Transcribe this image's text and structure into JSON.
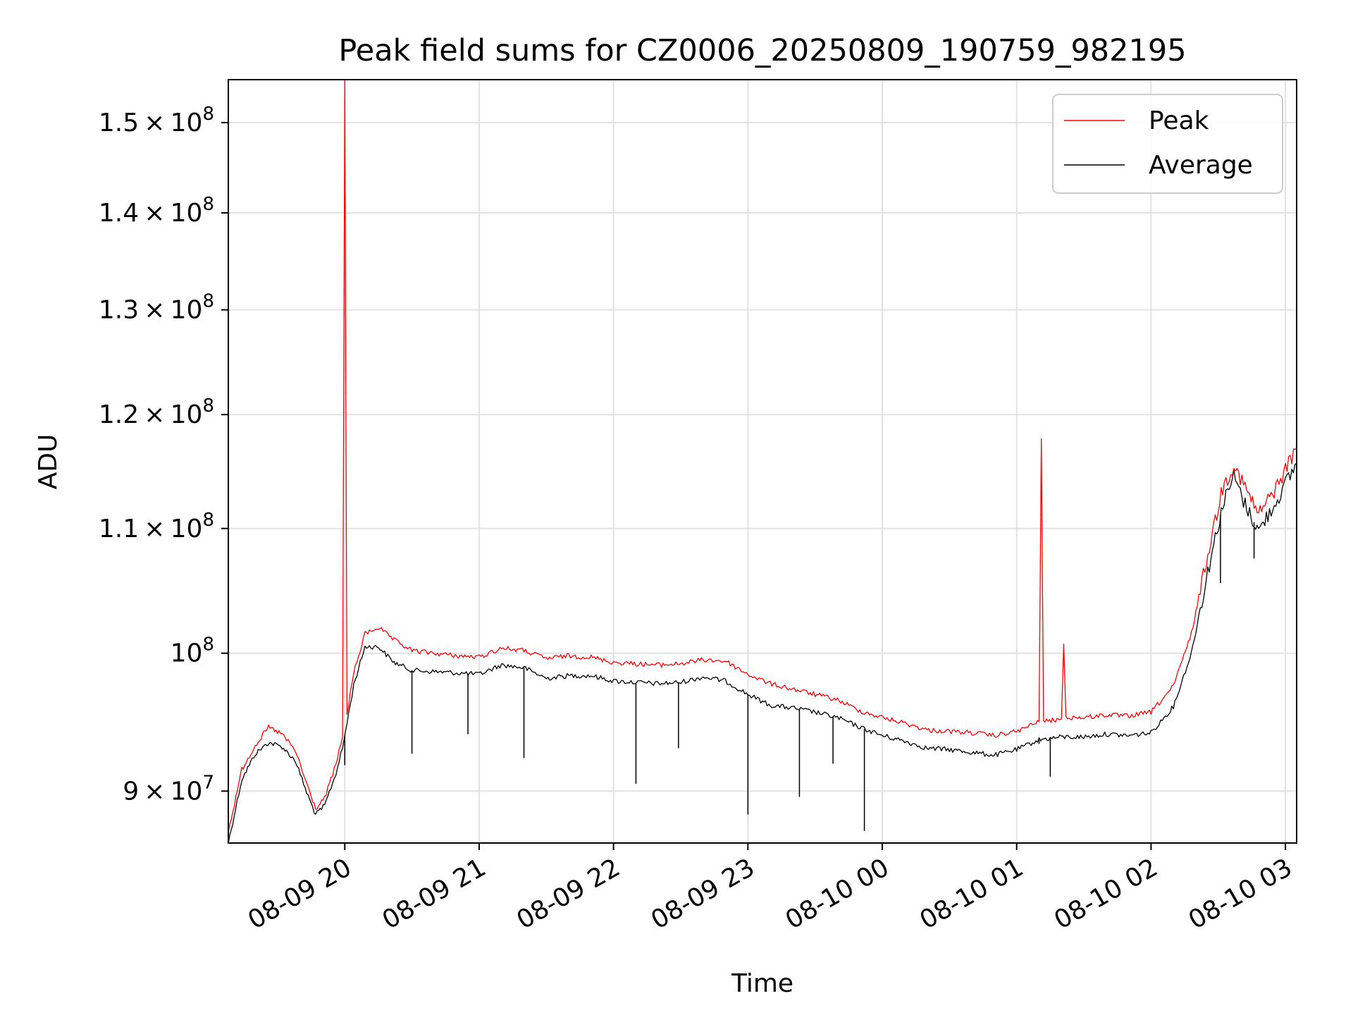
{
  "chart_data": {
    "type": "line",
    "title": "Peak field sums for CZ0006_20250809_190759_982195",
    "xlabel": "Time",
    "ylabel": "ADU",
    "y_scale": "log",
    "grid": true,
    "legend_position": "top-right",
    "xlim": [
      "2025-08-09 19:08",
      "2025-08-10 03:05"
    ],
    "ylim": [
      86500000,
      155000000
    ],
    "x_ticks": [
      {
        "value": "2025-08-09 20:00",
        "label": "08-09 20"
      },
      {
        "value": "2025-08-09 21:00",
        "label": "08-09 21"
      },
      {
        "value": "2025-08-09 22:00",
        "label": "08-09 22"
      },
      {
        "value": "2025-08-09 23:00",
        "label": "08-09 23"
      },
      {
        "value": "2025-08-10 00:00",
        "label": "08-10 00"
      },
      {
        "value": "2025-08-10 01:00",
        "label": "08-10 01"
      },
      {
        "value": "2025-08-10 02:00",
        "label": "08-10 02"
      },
      {
        "value": "2025-08-10 03:00",
        "label": "08-10 03"
      }
    ],
    "y_ticks": [
      {
        "value": 90000000,
        "mantissa": "9",
        "exp": "7"
      },
      {
        "value": 100000000,
        "mantissa": "",
        "exp": "8"
      },
      {
        "value": 110000000,
        "mantissa": "1.1",
        "exp": "8"
      },
      {
        "value": 120000000,
        "mantissa": "1.2",
        "exp": "8"
      },
      {
        "value": 130000000,
        "mantissa": "1.3",
        "exp": "8"
      },
      {
        "value": 140000000,
        "mantissa": "1.4",
        "exp": "8"
      },
      {
        "value": 150000000,
        "mantissa": "1.5",
        "exp": "8"
      }
    ],
    "series": [
      {
        "name": "Peak",
        "color": "#ff0000",
        "points": [
          [
            "2025-08-09 19:08",
            87200000
          ],
          [
            "2025-08-09 19:14",
            91500000
          ],
          [
            "2025-08-09 19:20",
            93200000
          ],
          [
            "2025-08-09 19:26",
            94500000
          ],
          [
            "2025-08-09 19:32",
            94000000
          ],
          [
            "2025-08-09 19:38",
            92800000
          ],
          [
            "2025-08-09 19:43",
            90500000
          ],
          [
            "2025-08-09 19:47",
            88800000
          ],
          [
            "2025-08-09 19:51",
            89500000
          ],
          [
            "2025-08-09 19:56",
            91800000
          ],
          [
            "2025-08-09 19:59",
            93800000
          ],
          [
            "2025-08-09 20:00",
            155000000
          ],
          [
            "2025-08-09 20:01",
            95500000
          ],
          [
            "2025-08-09 20:04",
            98500000
          ],
          [
            "2025-08-09 20:09",
            101500000
          ],
          [
            "2025-08-09 20:15",
            102000000
          ],
          [
            "2025-08-09 20:22",
            101000000
          ],
          [
            "2025-08-09 20:30",
            100200000
          ],
          [
            "2025-08-09 20:40",
            100000000
          ],
          [
            "2025-08-09 20:50",
            99800000
          ],
          [
            "2025-08-09 21:00",
            99700000
          ],
          [
            "2025-08-09 21:10",
            100400000
          ],
          [
            "2025-08-09 21:20",
            100200000
          ],
          [
            "2025-08-09 21:30",
            99600000
          ],
          [
            "2025-08-09 21:40",
            99800000
          ],
          [
            "2025-08-09 21:50",
            99700000
          ],
          [
            "2025-08-09 22:00",
            99300000
          ],
          [
            "2025-08-09 22:10",
            99200000
          ],
          [
            "2025-08-09 22:20",
            99100000
          ],
          [
            "2025-08-09 22:30",
            99200000
          ],
          [
            "2025-08-09 22:40",
            99500000
          ],
          [
            "2025-08-09 22:50",
            99400000
          ],
          [
            "2025-08-09 23:00",
            98400000
          ],
          [
            "2025-08-09 23:10",
            97700000
          ],
          [
            "2025-08-09 23:20",
            97300000
          ],
          [
            "2025-08-09 23:30",
            96900000
          ],
          [
            "2025-08-09 23:40",
            96500000
          ],
          [
            "2025-08-09 23:50",
            95700000
          ],
          [
            "2025-08-10 00:00",
            95200000
          ],
          [
            "2025-08-10 00:10",
            94800000
          ],
          [
            "2025-08-10 00:20",
            94300000
          ],
          [
            "2025-08-10 00:30",
            94200000
          ],
          [
            "2025-08-10 00:40",
            94100000
          ],
          [
            "2025-08-10 00:50",
            93900000
          ],
          [
            "2025-08-10 01:00",
            94200000
          ],
          [
            "2025-08-10 01:10",
            94900000
          ],
          [
            "2025-08-10 01:11",
            117800000
          ],
          [
            "2025-08-10 01:12",
            94900000
          ],
          [
            "2025-08-10 01:20",
            95100000
          ],
          [
            "2025-08-10 01:21",
            100700000
          ],
          [
            "2025-08-10 01:22",
            95200000
          ],
          [
            "2025-08-10 01:30",
            95200000
          ],
          [
            "2025-08-10 01:40",
            95400000
          ],
          [
            "2025-08-10 01:50",
            95300000
          ],
          [
            "2025-08-10 02:00",
            95600000
          ],
          [
            "2025-08-10 02:10",
            97500000
          ],
          [
            "2025-08-10 02:18",
            101500000
          ],
          [
            "2025-08-10 02:26",
            108500000
          ],
          [
            "2025-08-10 02:32",
            113500000
          ],
          [
            "2025-08-10 02:37",
            115500000
          ],
          [
            "2025-08-10 02:42",
            113500000
          ],
          [
            "2025-08-10 02:48",
            111200000
          ],
          [
            "2025-08-10 02:55",
            113200000
          ],
          [
            "2025-08-10 03:05",
            117000000
          ]
        ]
      },
      {
        "name": "Average",
        "color": "#000000",
        "points": [
          [
            "2025-08-09 19:08",
            86500000
          ],
          [
            "2025-08-09 19:14",
            90800000
          ],
          [
            "2025-08-09 19:20",
            92600000
          ],
          [
            "2025-08-09 19:26",
            93400000
          ],
          [
            "2025-08-09 19:32",
            93100000
          ],
          [
            "2025-08-09 19:38",
            92100000
          ],
          [
            "2025-08-09 19:43",
            89900000
          ],
          [
            "2025-08-09 19:47",
            88400000
          ],
          [
            "2025-08-09 19:51",
            89000000
          ],
          [
            "2025-08-09 19:56",
            91200000
          ],
          [
            "2025-08-09 19:59",
            93000000
          ],
          [
            "2025-08-09 20:01",
            94800000
          ],
          [
            "2025-08-09 20:04",
            97600000
          ],
          [
            "2025-08-09 20:09",
            100500000
          ],
          [
            "2025-08-09 20:15",
            100500000
          ],
          [
            "2025-08-09 20:22",
            99300000
          ],
          [
            "2025-08-09 20:30",
            98700000
          ],
          [
            "2025-08-09 20:40",
            98600000
          ],
          [
            "2025-08-09 20:50",
            98500000
          ],
          [
            "2025-08-09 21:00",
            98400000
          ],
          [
            "2025-08-09 21:10",
            99100000
          ],
          [
            "2025-08-09 21:20",
            98900000
          ],
          [
            "2025-08-09 21:30",
            98100000
          ],
          [
            "2025-08-09 21:40",
            98300000
          ],
          [
            "2025-08-09 21:50",
            98300000
          ],
          [
            "2025-08-09 22:00",
            97900000
          ],
          [
            "2025-08-09 22:10",
            97800000
          ],
          [
            "2025-08-09 22:20",
            97700000
          ],
          [
            "2025-08-09 22:30",
            97800000
          ],
          [
            "2025-08-09 22:40",
            98200000
          ],
          [
            "2025-08-09 22:50",
            97900000
          ],
          [
            "2025-08-09 23:00",
            96900000
          ],
          [
            "2025-08-09 23:10",
            96100000
          ],
          [
            "2025-08-09 23:20",
            95900000
          ],
          [
            "2025-08-09 23:30",
            95600000
          ],
          [
            "2025-08-09 23:40",
            95200000
          ],
          [
            "2025-08-09 23:50",
            94500000
          ],
          [
            "2025-08-10 00:00",
            93900000
          ],
          [
            "2025-08-10 00:10",
            93500000
          ],
          [
            "2025-08-10 00:20",
            93000000
          ],
          [
            "2025-08-10 00:30",
            92900000
          ],
          [
            "2025-08-10 00:40",
            92700000
          ],
          [
            "2025-08-10 00:50",
            92500000
          ],
          [
            "2025-08-10 01:00",
            92900000
          ],
          [
            "2025-08-10 01:10",
            93600000
          ],
          [
            "2025-08-10 01:20",
            93800000
          ],
          [
            "2025-08-10 01:30",
            93800000
          ],
          [
            "2025-08-10 01:40",
            94000000
          ],
          [
            "2025-08-10 01:50",
            93900000
          ],
          [
            "2025-08-10 02:00",
            94100000
          ],
          [
            "2025-08-10 02:10",
            96000000
          ],
          [
            "2025-08-10 02:18",
            100000000
          ],
          [
            "2025-08-10 02:26",
            107000000
          ],
          [
            "2025-08-10 02:32",
            112000000
          ],
          [
            "2025-08-10 02:37",
            114500000
          ],
          [
            "2025-08-10 02:42",
            112000000
          ],
          [
            "2025-08-10 02:48",
            109800000
          ],
          [
            "2025-08-10 02:55",
            112000000
          ],
          [
            "2025-08-10 03:05",
            115600000
          ]
        ],
        "dips": [
          [
            "2025-08-09 20:00",
            91800000
          ],
          [
            "2025-08-09 20:30",
            92600000
          ],
          [
            "2025-08-09 20:55",
            94000000
          ],
          [
            "2025-08-09 21:20",
            92300000
          ],
          [
            "2025-08-09 22:10",
            90500000
          ],
          [
            "2025-08-09 22:29",
            93000000
          ],
          [
            "2025-08-09 23:00",
            88400000
          ],
          [
            "2025-08-09 23:23",
            89600000
          ],
          [
            "2025-08-09 23:38",
            91900000
          ],
          [
            "2025-08-09 23:52",
            87300000
          ],
          [
            "2025-08-10 01:10",
            93300000
          ],
          [
            "2025-08-10 01:15",
            91000000
          ],
          [
            "2025-08-10 02:31",
            105500000
          ],
          [
            "2025-08-10 02:46",
            107500000
          ]
        ]
      }
    ]
  }
}
